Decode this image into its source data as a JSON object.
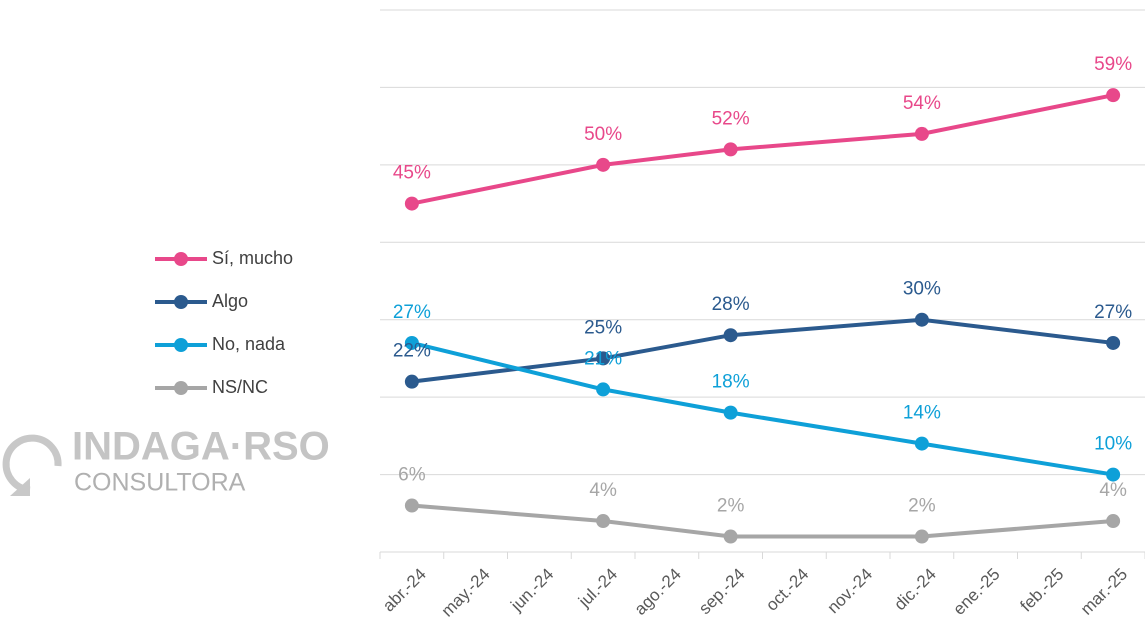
{
  "chart_data": {
    "type": "line",
    "categories": [
      "abr.-24",
      "may.-24",
      "jun.-24",
      "jul.-24",
      "ago.-24",
      "sep.-24",
      "oct.-24",
      "nov.-24",
      "dic.-24",
      "ene.-25",
      "feb.-25",
      "mar.-25"
    ],
    "series": [
      {
        "name": "Sí, mucho",
        "color": "#e8488a",
        "values": [
          45,
          null,
          null,
          50,
          null,
          52,
          null,
          null,
          54,
          null,
          null,
          59
        ],
        "value_labels": [
          "45%",
          null,
          null,
          "50%",
          null,
          "52%",
          null,
          null,
          "54%",
          null,
          null,
          "59%"
        ]
      },
      {
        "name": "Algo",
        "color": "#2b5a8e",
        "values": [
          22,
          null,
          null,
          25,
          null,
          28,
          null,
          null,
          30,
          null,
          null,
          27
        ],
        "value_labels": [
          "22%",
          null,
          null,
          "25%",
          null,
          "28%",
          null,
          null,
          "30%",
          null,
          null,
          "27%"
        ]
      },
      {
        "name": "No, nada",
        "color": "#0ea0d8",
        "values": [
          27,
          null,
          null,
          21,
          null,
          18,
          null,
          null,
          14,
          null,
          null,
          10
        ],
        "value_labels": [
          "27%",
          null,
          null,
          "21%",
          null,
          "18%",
          null,
          null,
          "14%",
          null,
          null,
          "10%"
        ]
      },
      {
        "name": "NS/NC",
        "color": "#a6a6a6",
        "values": [
          6,
          null,
          null,
          4,
          null,
          2,
          null,
          null,
          2,
          null,
          null,
          4
        ],
        "value_labels": [
          "6%",
          null,
          null,
          "4%",
          null,
          "2%",
          null,
          null,
          "2%",
          null,
          null,
          "4%"
        ]
      }
    ],
    "span_gaps": true,
    "ylim": [
      0,
      70
    ],
    "yticks": [
      0,
      10,
      20,
      30,
      40,
      50,
      60,
      70
    ],
    "grid": true,
    "legend": "left"
  },
  "logo": {
    "name": "INDAGA·RSO",
    "subtitle": "CONSULTORA"
  }
}
